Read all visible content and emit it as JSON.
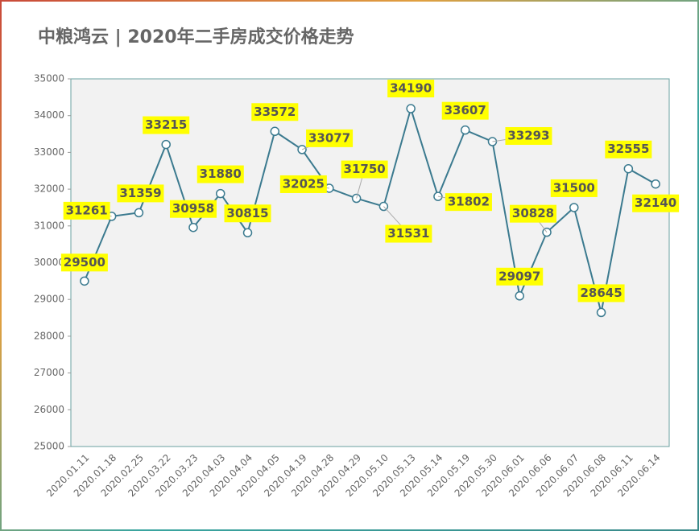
{
  "chart_data": {
    "type": "line",
    "title": "中粮鸿云 | 2020年二手房成交价格走势",
    "categories": [
      "2020.01.11",
      "2020.01.18",
      "2020.02.25",
      "2020.03.22",
      "2020.03.23",
      "2020.04.03",
      "2020.04.04",
      "2020.04.05",
      "2020.04.19",
      "2020.04.28",
      "2020.04.29",
      "2020.05.10",
      "2020.05.13",
      "2020.05.14",
      "2020.05.19",
      "2020.05.30",
      "2020.06.01",
      "2020.06.06",
      "2020.06.07",
      "2020.06.08",
      "2020.06.11",
      "2020.06.14"
    ],
    "values": [
      29500,
      31261,
      31359,
      33215,
      30958,
      31880,
      30815,
      33572,
      33077,
      32025,
      31750,
      31531,
      34190,
      31802,
      33607,
      33293,
      29097,
      30828,
      31500,
      28645,
      32555,
      32140
    ],
    "color": "#3b7a8f",
    "ylim": [
      25000,
      35000
    ],
    "yticks": [
      25000,
      26000,
      27000,
      28000,
      29000,
      30000,
      31000,
      32000,
      33000,
      34000,
      35000
    ]
  }
}
